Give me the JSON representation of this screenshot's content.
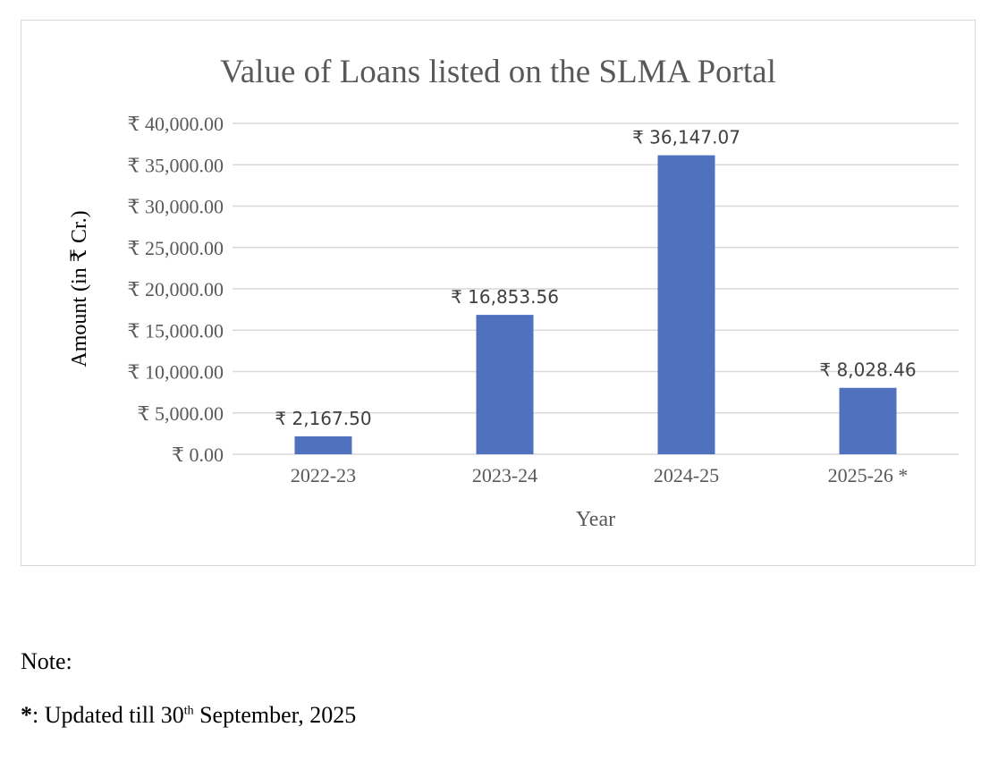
{
  "chart_data": {
    "type": "bar",
    "title": "Value of Loans listed on the SLMA Portal",
    "xlabel": "Year",
    "ylabel": "Amount (in ₹ Cr.)",
    "categories": [
      "2022-23",
      "2023-24",
      "2024-25",
      "2025-26 *"
    ],
    "values": [
      2167.5,
      16853.56,
      36147.07,
      8028.46
    ],
    "data_labels": [
      "₹ 2,167.50",
      "₹ 16,853.56",
      "₹ 36,147.07",
      "₹ 8,028.46"
    ],
    "ylim": [
      0,
      40000
    ],
    "yticks": [
      0,
      5000,
      10000,
      15000,
      20000,
      25000,
      30000,
      35000,
      40000
    ],
    "ytick_labels": [
      "₹ 0.00",
      "₹ 5,000.00",
      "₹ 10,000.00",
      "₹ 15,000.00",
      "₹ 20,000.00",
      "₹ 25,000.00",
      "₹ 30,000.00",
      "₹ 35,000.00",
      "₹ 40,000.00"
    ],
    "grid": true,
    "legend": "none",
    "bar_color": "#4f71be",
    "grid_color": "#d9d9d9",
    "text_color": "#595959"
  },
  "note": {
    "title": "Note:",
    "star": "*",
    "text_before": ": Updated till 30",
    "superscript": "th",
    "text_after": " September, 2025"
  }
}
